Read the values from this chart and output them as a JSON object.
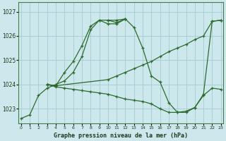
{
  "title": "Graphe pression niveau de la mer (hPa)",
  "background_color": "#cce8ed",
  "grid_color": "#aacdd4",
  "line_color": "#2d6a2d",
  "xlim": [
    -0.3,
    23.3
  ],
  "ylim": [
    1022.4,
    1027.4
  ],
  "yticks": [
    1023,
    1024,
    1025,
    1026,
    1027
  ],
  "xticks": [
    0,
    1,
    2,
    3,
    4,
    5,
    6,
    7,
    8,
    9,
    10,
    11,
    12,
    13,
    14,
    15,
    16,
    17,
    18,
    19,
    20,
    21,
    22,
    23
  ],
  "lines": [
    {
      "x": [
        0,
        1,
        2,
        3,
        4,
        5,
        6,
        7,
        8,
        9,
        10,
        11,
        12
      ],
      "y": [
        1022.6,
        1022.75,
        1023.55,
        1023.85,
        1024.0,
        1024.15,
        1024.5,
        1025.15,
        1026.25,
        1026.65,
        1026.65,
        1026.55,
        1026.7
      ]
    },
    {
      "x": [
        3,
        4,
        5,
        6,
        7,
        8,
        9,
        10,
        11,
        12
      ],
      "y": [
        1024.0,
        1023.95,
        1024.5,
        1024.95,
        1025.6,
        1026.4,
        1026.65,
        1026.5,
        1026.5,
        1026.7
      ]
    },
    {
      "x": [
        3,
        4,
        10,
        11,
        12,
        13,
        14,
        15,
        16,
        17,
        18,
        19,
        20,
        21,
        22,
        23
      ],
      "y": [
        1024.0,
        1023.95,
        1024.2,
        1024.35,
        1024.5,
        1024.65,
        1024.8,
        1024.95,
        1025.15,
        1025.35,
        1025.5,
        1025.65,
        1025.85,
        1026.0,
        1026.6,
        1026.65
      ]
    },
    {
      "x": [
        3,
        4,
        5,
        6,
        7,
        8,
        9,
        10,
        11,
        12,
        13,
        14,
        15,
        16,
        17,
        18,
        19,
        20,
        21,
        22,
        23
      ],
      "y": [
        1024.0,
        1023.9,
        1023.85,
        1023.8,
        1023.75,
        1023.7,
        1023.65,
        1023.6,
        1023.5,
        1023.4,
        1023.35,
        1023.3,
        1023.2,
        1023.0,
        1022.85,
        1022.85,
        1022.9,
        1023.05,
        1023.55,
        1023.85,
        1023.8
      ]
    },
    {
      "x": [
        10,
        11,
        12,
        13,
        14,
        15,
        16,
        17,
        18,
        19,
        20,
        21,
        22,
        23
      ],
      "y": [
        1026.65,
        1026.65,
        1026.7,
        1026.35,
        1025.5,
        1024.35,
        1024.1,
        1023.25,
        1022.85,
        1022.85,
        1023.05,
        1023.6,
        1026.6,
        1026.65
      ]
    }
  ]
}
